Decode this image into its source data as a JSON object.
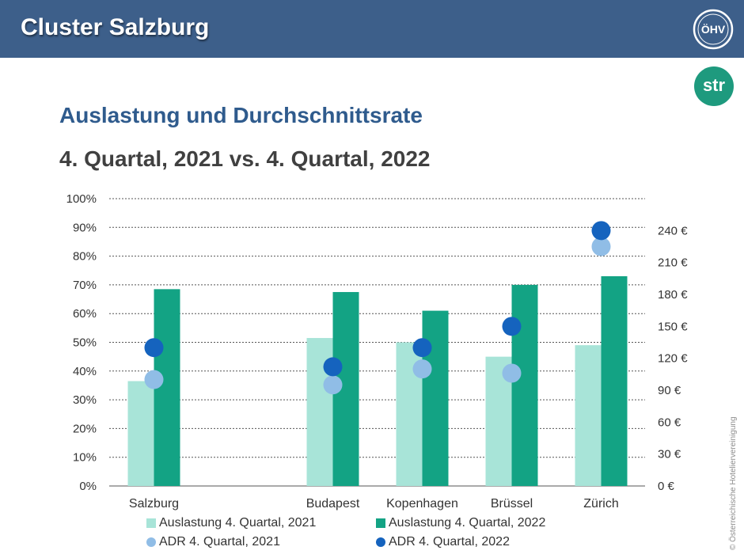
{
  "header": {
    "title": "Cluster Salzburg",
    "logo_text": "ÖHV"
  },
  "str_logo": {
    "text": "str"
  },
  "subtitle": "Auslastung und Durchschnittsrate",
  "subtitle2": "4. Quartal, 2021 vs. 4. Quartal, 2022",
  "copyright": "© Österreichische Hoteliervereinigung",
  "colors": {
    "header": "#3d5f8a",
    "occ2021": "#a8e4d8",
    "occ2022": "#13a384",
    "adr2021": "#90bde6",
    "adr2022": "#1563be",
    "str": "#1e9a7e"
  },
  "chart_data": {
    "type": "bar",
    "categories": [
      "Salzburg",
      "",
      "Budapest",
      "Kopenhagen",
      "Brüssel",
      "Zürich"
    ],
    "series": [
      {
        "name": "Auslastung 4. Quartal, 2021",
        "type": "bar",
        "axis": "left",
        "values": [
          36.5,
          null,
          51.5,
          50.0,
          45.0,
          49.0
        ]
      },
      {
        "name": "Auslastung 4. Quartal, 2022",
        "type": "bar",
        "axis": "left",
        "values": [
          68.5,
          null,
          67.5,
          61.0,
          70.0,
          73.0
        ]
      },
      {
        "name": "ADR 4. Quartal, 2021",
        "type": "scatter",
        "axis": "right",
        "values": [
          100,
          null,
          95,
          110,
          106,
          225
        ]
      },
      {
        "name": "ADR 4. Quartal, 2022",
        "type": "scatter",
        "axis": "right",
        "values": [
          130,
          null,
          112,
          130,
          150,
          240
        ]
      }
    ],
    "y_left": {
      "ticks": [
        "0%",
        "10%",
        "20%",
        "30%",
        "40%",
        "50%",
        "60%",
        "70%",
        "80%",
        "90%",
        "100%"
      ],
      "min": 0,
      "max": 100
    },
    "y_right": {
      "ticks": [
        "0 €",
        "30 €",
        "60 €",
        "90 €",
        "120 €",
        "150 €",
        "180 €",
        "210 €",
        "240 €"
      ],
      "min": 0,
      "max": 270
    },
    "grid": true,
    "legend": "bottom"
  }
}
